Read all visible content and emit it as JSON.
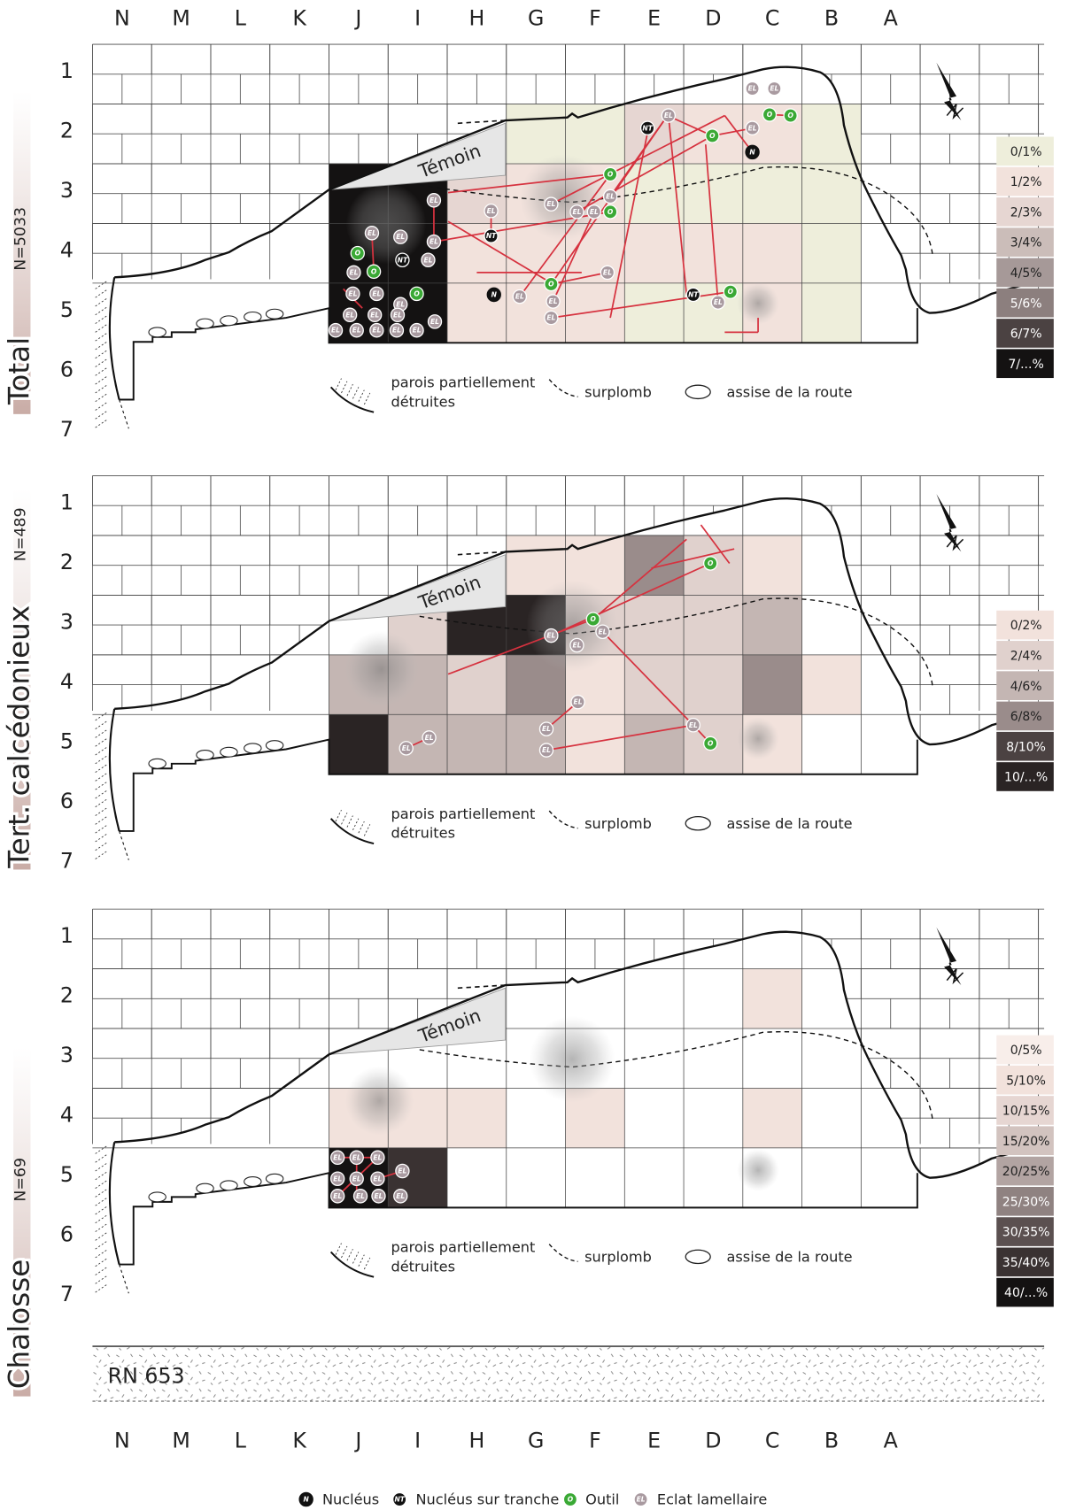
{
  "columns": [
    "N",
    "M",
    "L",
    "K",
    "J",
    "I",
    "H",
    "G",
    "F",
    "E",
    "D",
    "C",
    "B",
    "A"
  ],
  "rows": [
    1,
    2,
    3,
    4,
    5,
    6,
    7
  ],
  "temoin": "Témoin",
  "map_legend": {
    "walls": [
      "parois partiellement",
      "détruites"
    ],
    "overhang": "surplomb",
    "road_base": "assise de la route"
  },
  "panels": [
    {
      "title": "Total",
      "count": "N=5033",
      "scale": [
        {
          "label": "0/1%",
          "color": "#eeeedb"
        },
        {
          "label": "1/2%",
          "color": "#f2e2dc"
        },
        {
          "label": "2/3%",
          "color": "#e6d6d2"
        },
        {
          "label": "3/4%",
          "color": "#cbbdb9"
        },
        {
          "label": "4/5%",
          "color": "#a69998"
        },
        {
          "label": "5/6%",
          "color": "#8c7f7e"
        },
        {
          "label": "6/7%",
          "color": "#4b4242"
        },
        {
          "label": "7/...%",
          "color": "#141212"
        }
      ],
      "cells": [
        [
          null,
          null,
          null,
          0,
          0,
          2,
          1,
          1,
          0
        ],
        [
          7,
          7,
          2,
          1,
          1,
          0,
          0,
          0,
          0
        ],
        [
          7,
          7,
          1,
          1,
          1,
          1,
          1,
          1,
          0
        ],
        [
          7,
          7,
          1,
          1,
          1,
          0,
          0,
          1,
          0
        ]
      ]
    },
    {
      "title": "Tert. calcédonieux",
      "count": "N=489",
      "scale": [
        {
          "label": "0/2%",
          "color": "#f2e2dc"
        },
        {
          "label": "2/4%",
          "color": "#e0d1cd"
        },
        {
          "label": "4/6%",
          "color": "#c4b6b3"
        },
        {
          "label": "6/8%",
          "color": "#9a8c8b"
        },
        {
          "label": "8/10%",
          "color": "#4b4242"
        },
        {
          "label": "10/...%",
          "color": "#2a2424"
        }
      ],
      "cells": [
        [
          null,
          null,
          null,
          0,
          0,
          3,
          1,
          0,
          null
        ],
        [
          null,
          1,
          5,
          5,
          1,
          1,
          1,
          2,
          null
        ],
        [
          2,
          2,
          1,
          3,
          0,
          1,
          1,
          3,
          0
        ],
        [
          5,
          2,
          2,
          2,
          0,
          2,
          1,
          0,
          null
        ]
      ]
    },
    {
      "title": "Chalosse",
      "count": "N=69",
      "scale": [
        {
          "label": "0/5%",
          "color": "#f8eeea"
        },
        {
          "label": "5/10%",
          "color": "#f2e2dc"
        },
        {
          "label": "10/15%",
          "color": "#e6d6d2"
        },
        {
          "label": "15/20%",
          "color": "#d2c3bf"
        },
        {
          "label": "20/25%",
          "color": "#b2a4a2"
        },
        {
          "label": "25/30%",
          "color": "#8f8281"
        },
        {
          "label": "30/35%",
          "color": "#5b5050"
        },
        {
          "label": "35/40%",
          "color": "#3a3232"
        },
        {
          "label": "40/...%",
          "color": "#141212"
        }
      ],
      "cells": [
        [
          null,
          null,
          null,
          null,
          null,
          null,
          null,
          1,
          null
        ],
        [
          null,
          null,
          null,
          null,
          null,
          null,
          null,
          null,
          null
        ],
        [
          1,
          1,
          1,
          null,
          1,
          null,
          null,
          1,
          null
        ],
        [
          8,
          7,
          null,
          null,
          null,
          null,
          null,
          null,
          null
        ]
      ]
    }
  ],
  "road": "RN 653",
  "legend": {
    "items": [
      {
        "code": "N",
        "label": "Nucléus"
      },
      {
        "code": "NT",
        "label": "Nucléus sur tranche"
      },
      {
        "code": "O",
        "label": "Outil"
      },
      {
        "code": "EL",
        "label": "Eclat lamellaire"
      }
    ]
  }
}
